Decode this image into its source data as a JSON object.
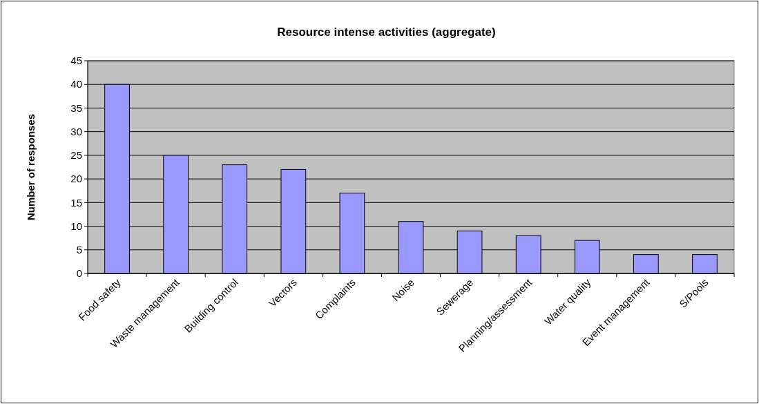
{
  "chart_data": {
    "type": "bar",
    "title": "Resource intense activities (aggregate)",
    "ylabel": "Number of responses",
    "categories": [
      "Food safety",
      "Waste management",
      "Building control",
      "Vectors",
      "Complaints",
      "Noise",
      "Sewerage",
      "Planning/assessment",
      "Water quality",
      "Event management",
      "S/Pools"
    ],
    "values": [
      40,
      25,
      23,
      22,
      17,
      11,
      9,
      8,
      7,
      4,
      4
    ],
    "color": "#9999ff",
    "ylim": [
      0,
      45
    ],
    "yticks": [
      0,
      5,
      10,
      15,
      20,
      25,
      30,
      35,
      40,
      45
    ],
    "grid": "y"
  }
}
